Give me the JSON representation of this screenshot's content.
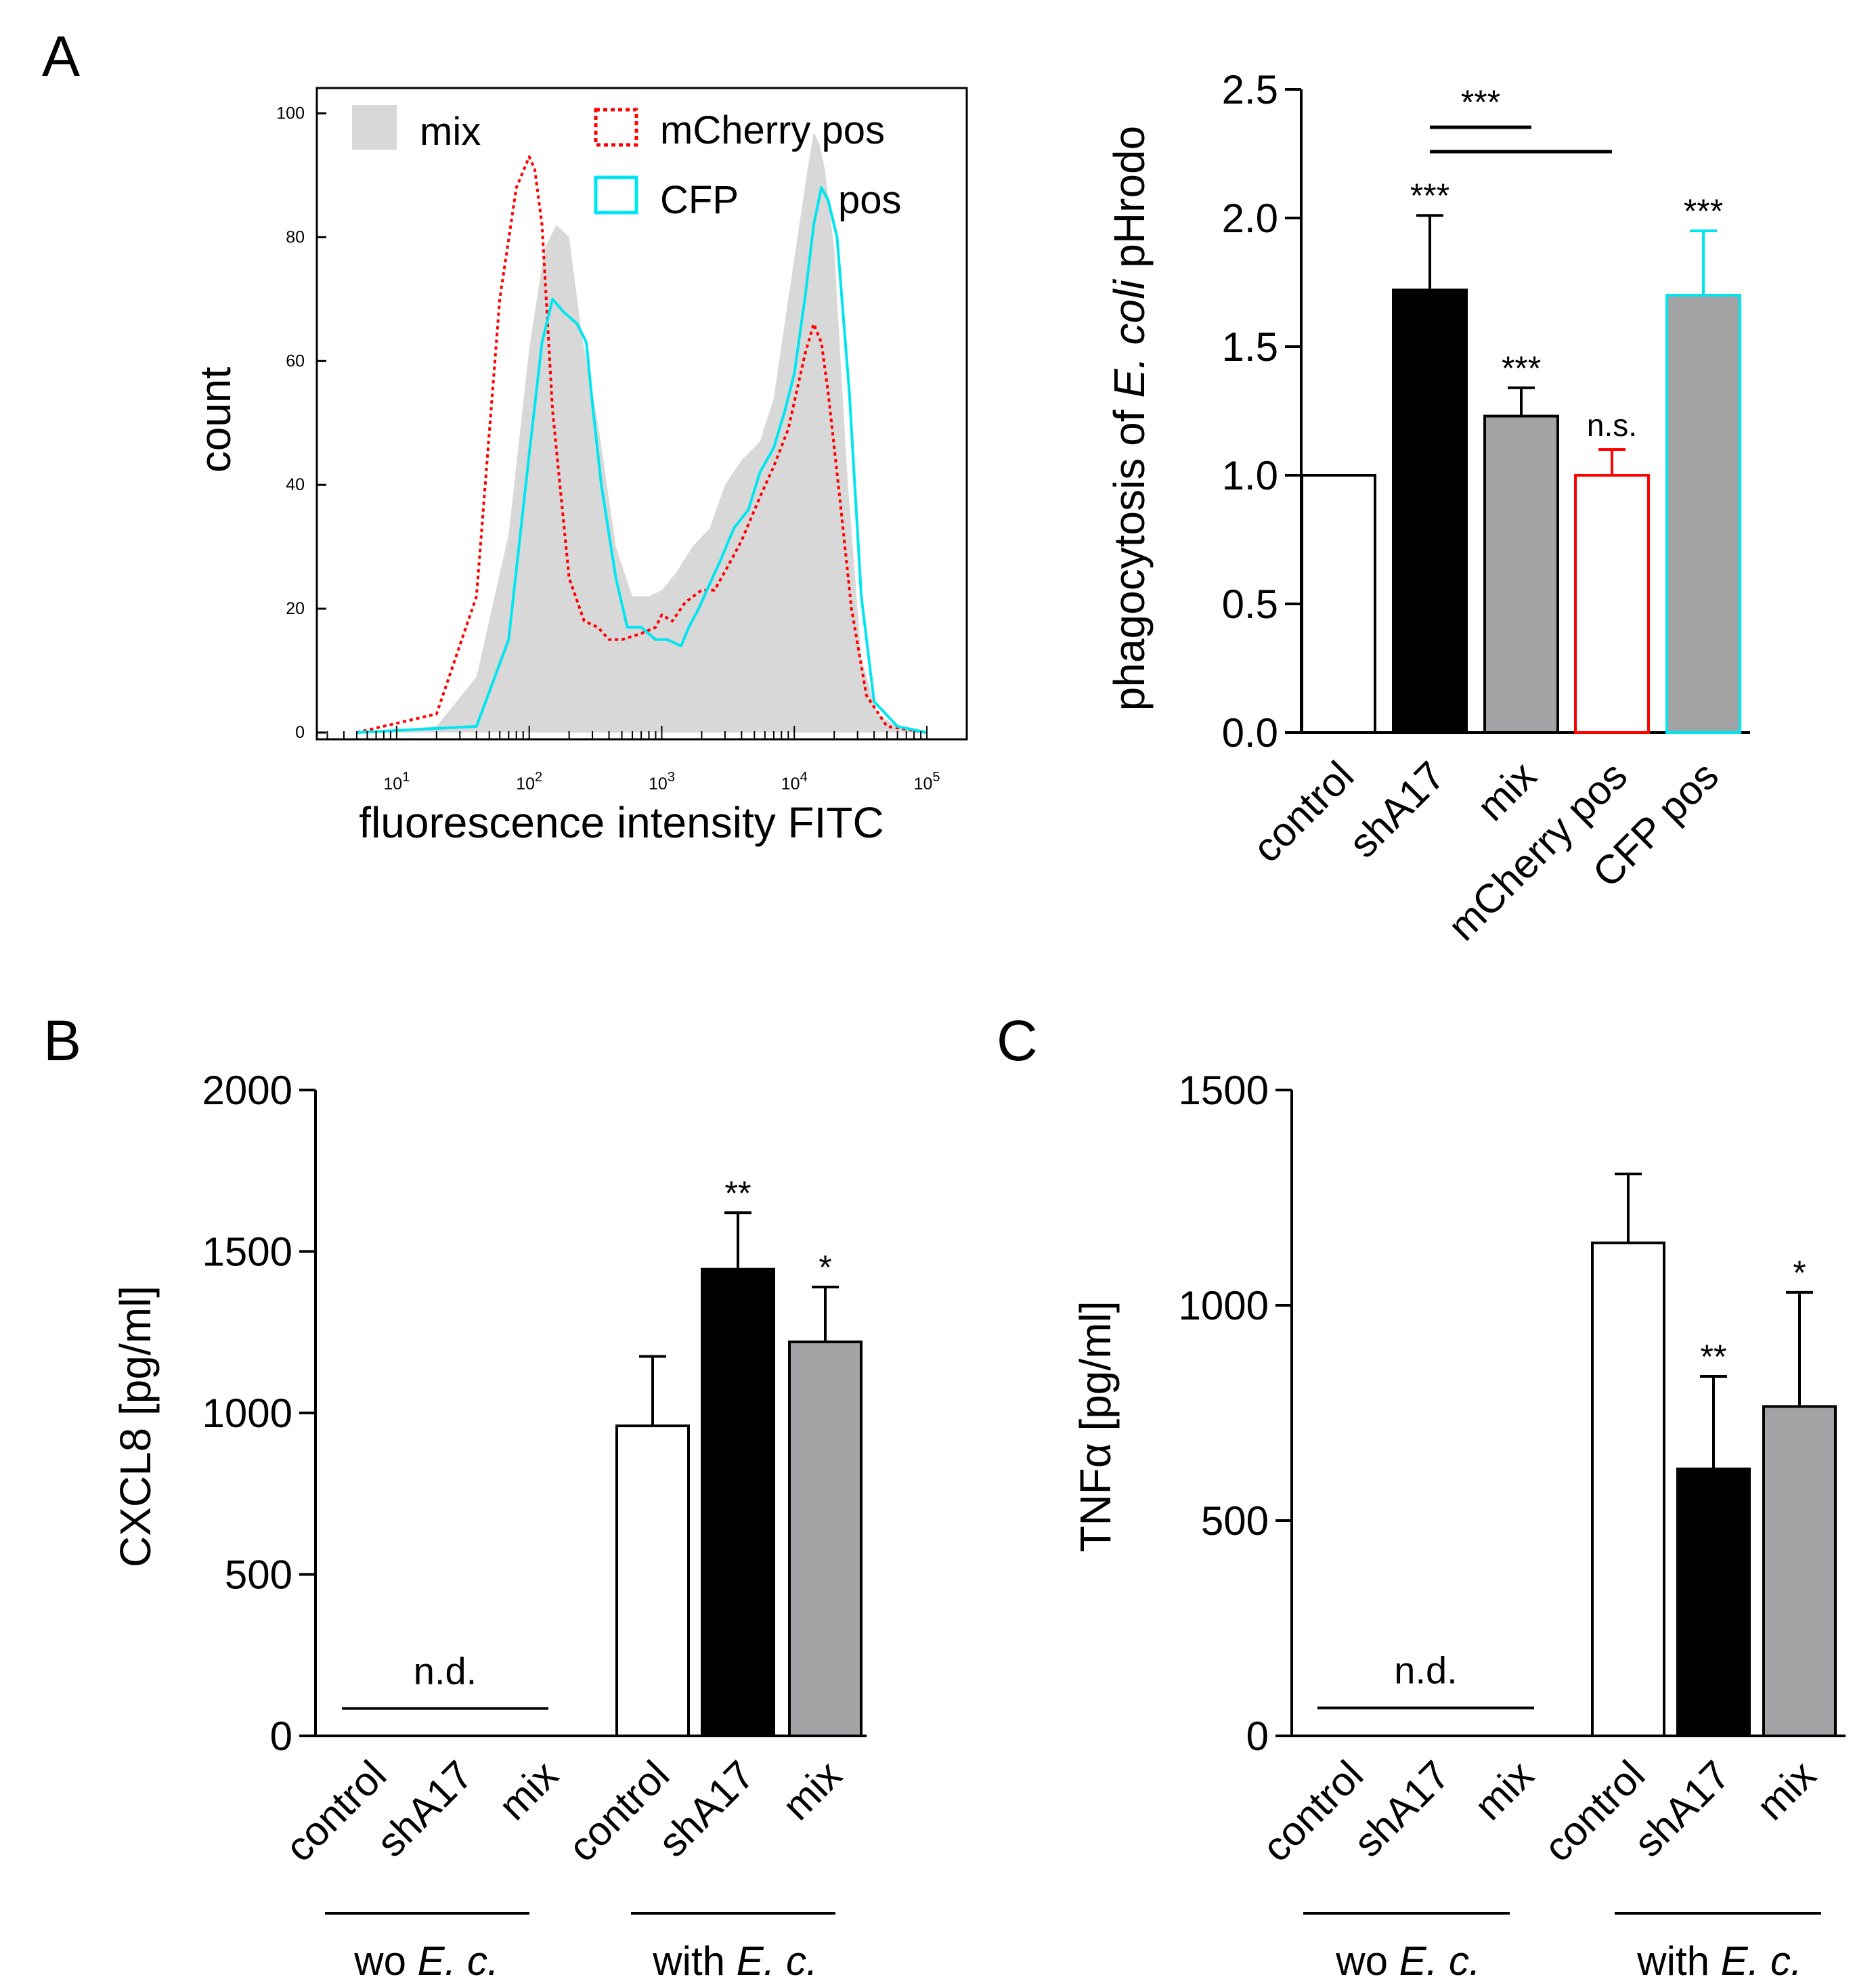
{
  "figure": {
    "panel_letters": [
      "A",
      "B",
      "C"
    ]
  },
  "chart_data": [
    {
      "id": "A_hist",
      "panel": "A",
      "type": "line",
      "title": "",
      "xlabel": "fluorescence intensity FITC",
      "ylabel": "count",
      "xscale": "log",
      "xlim": [
        2.5,
        200000
      ],
      "ylim": [
        0,
        103
      ],
      "grid": false,
      "x_ticks": [
        {
          "value": 10,
          "base": "10",
          "exp": "1"
        },
        {
          "value": 100,
          "base": "10",
          "exp": "2"
        },
        {
          "value": 1000,
          "base": "10",
          "exp": "3"
        },
        {
          "value": 10000,
          "base": "10",
          "exp": "4"
        },
        {
          "value": 100000,
          "base": "10",
          "exp": "5"
        }
      ],
      "y_ticks": [
        0,
        20,
        40,
        60,
        80,
        100
      ],
      "legend": [
        {
          "label": "mix",
          "style": "filled-gray"
        },
        {
          "label": "mCherry pos",
          "style": "dotted-red"
        },
        {
          "label": "CFP",
          "style": "solid-cyan"
        },
        {
          "label": "pos",
          "style": "text"
        }
      ],
      "legend_position": "top",
      "series": [
        {
          "name": "mix",
          "color": "#d8d8d8",
          "style": "filled",
          "x": [
            5,
            20,
            40,
            70,
            100,
            130,
            160,
            200,
            250,
            330,
            450,
            600,
            800,
            1000,
            1300,
            1700,
            2300,
            3000,
            4000,
            5500,
            7000,
            9000,
            12000,
            14000,
            15500,
            17000,
            20000,
            25000,
            32000,
            42000,
            60000,
            100000
          ],
          "y": [
            0,
            1,
            9,
            32,
            62,
            78,
            82,
            80,
            64,
            50,
            30,
            22,
            22,
            23,
            26,
            30,
            33,
            40,
            44,
            47,
            54,
            70,
            88,
            97,
            95,
            91,
            78,
            42,
            12,
            3,
            1,
            0
          ]
        },
        {
          "name": "mCherry pos",
          "color": "#ff0000",
          "style": "dotted",
          "x": [
            5,
            20,
            40,
            60,
            80,
            100,
            110,
            125,
            150,
            200,
            260,
            330,
            400,
            500,
            700,
            900,
            1000,
            1200,
            1500,
            2000,
            2500,
            3000,
            4000,
            5500,
            7000,
            9000,
            12000,
            14000,
            16000,
            18000,
            22000,
            27000,
            35000,
            50000,
            100000
          ],
          "y": [
            0,
            3,
            22,
            70,
            88,
            93,
            91,
            82,
            52,
            25,
            18,
            17,
            15,
            15,
            16,
            17,
            19,
            18,
            21,
            23,
            23,
            26,
            31,
            38,
            43,
            49,
            61,
            66,
            63,
            55,
            38,
            20,
            6,
            1,
            0
          ]
        },
        {
          "name": "CFP pos",
          "color": "#00e5f0",
          "style": "solid",
          "x": [
            5,
            40,
            70,
            100,
            125,
            150,
            180,
            230,
            270,
            300,
            350,
            450,
            550,
            700,
            900,
            1100,
            1400,
            1600,
            1900,
            2300,
            2800,
            3500,
            4500,
            5500,
            7000,
            8500,
            10000,
            12000,
            14000,
            16000,
            18000,
            21000,
            26000,
            32000,
            40000,
            60000,
            100000
          ],
          "y": [
            0,
            1,
            15,
            45,
            63,
            70,
            68,
            66,
            63,
            53,
            40,
            25,
            17,
            17,
            15,
            15,
            14,
            17,
            20,
            24,
            28,
            33,
            36,
            42,
            46,
            52,
            58,
            70,
            82,
            88,
            86,
            80,
            55,
            22,
            5,
            1,
            0
          ]
        }
      ]
    },
    {
      "id": "A_bar",
      "panel": "A",
      "type": "bar",
      "title": "",
      "ylabel_parts": [
        "phagocytosis of ",
        "E. coli",
        " pHrodo"
      ],
      "ylim": [
        0,
        2.5
      ],
      "y_ticks": [
        "0.0",
        "0.5",
        "1.0",
        "1.5",
        "2.0",
        "2.5"
      ],
      "categories": [
        "control",
        "shA17",
        "mix",
        "mCherry pos",
        "CFP pos"
      ],
      "values": [
        1.0,
        1.72,
        1.23,
        1.0,
        1.7
      ],
      "errors": [
        0,
        0.29,
        0.11,
        0.1,
        0.25
      ],
      "fill": [
        "#ffffff",
        "#000000",
        "#a3a3a6",
        "#ffffff",
        "#a3a3a6"
      ],
      "stroke": [
        "#000000",
        "#000000",
        "#000000",
        "#ff0000",
        "#00e5f0"
      ],
      "annotations": [
        "",
        "***",
        "***",
        "n.s.",
        "***"
      ],
      "comparisons": [
        {
          "label": "***",
          "from": "shA17",
          "to": "mCherry pos"
        }
      ]
    },
    {
      "id": "B",
      "panel": "B",
      "type": "bar",
      "title": "",
      "ylabel": "CXCL8 [pg/ml]",
      "ylim": [
        0,
        2000
      ],
      "y_ticks": [
        "0",
        "500",
        "1000",
        "1500",
        "2000"
      ],
      "categories": [
        "control",
        "shA17",
        "mix",
        "control",
        "shA17",
        "mix"
      ],
      "values": [
        null,
        null,
        null,
        960,
        1445,
        1220
      ],
      "errors": [
        null,
        null,
        null,
        215,
        175,
        170
      ],
      "fill": [
        "",
        "",
        "",
        "#ffffff",
        "#000000",
        "#a3a3a6"
      ],
      "annotations": [
        "",
        "",
        "",
        "",
        "**",
        "*"
      ],
      "nd_label": "n.d.",
      "nd_value": 85,
      "groups": [
        {
          "label_parts": [
            "wo ",
            "E. c."
          ]
        },
        {
          "label_parts": [
            "with ",
            "E. c."
          ]
        }
      ]
    },
    {
      "id": "C",
      "panel": "C",
      "type": "bar",
      "title": "",
      "ylabel": "TNFα [pg/ml]",
      "ylim": [
        0,
        1500
      ],
      "y_ticks": [
        "0",
        "500",
        "1000",
        "1500"
      ],
      "categories": [
        "control",
        "shA17",
        "mix",
        "control",
        "shA17",
        "mix"
      ],
      "values": [
        null,
        null,
        null,
        1145,
        620,
        765
      ],
      "errors": [
        null,
        null,
        null,
        160,
        215,
        265
      ],
      "fill": [
        "",
        "",
        "",
        "#ffffff",
        "#000000",
        "#a3a3a6"
      ],
      "annotations": [
        "",
        "",
        "",
        "",
        "**",
        "*"
      ],
      "nd_label": "n.d.",
      "nd_value": 65,
      "groups": [
        {
          "label_parts": [
            "wo ",
            "E. c."
          ]
        },
        {
          "label_parts": [
            "with ",
            "E. c."
          ]
        }
      ]
    }
  ]
}
